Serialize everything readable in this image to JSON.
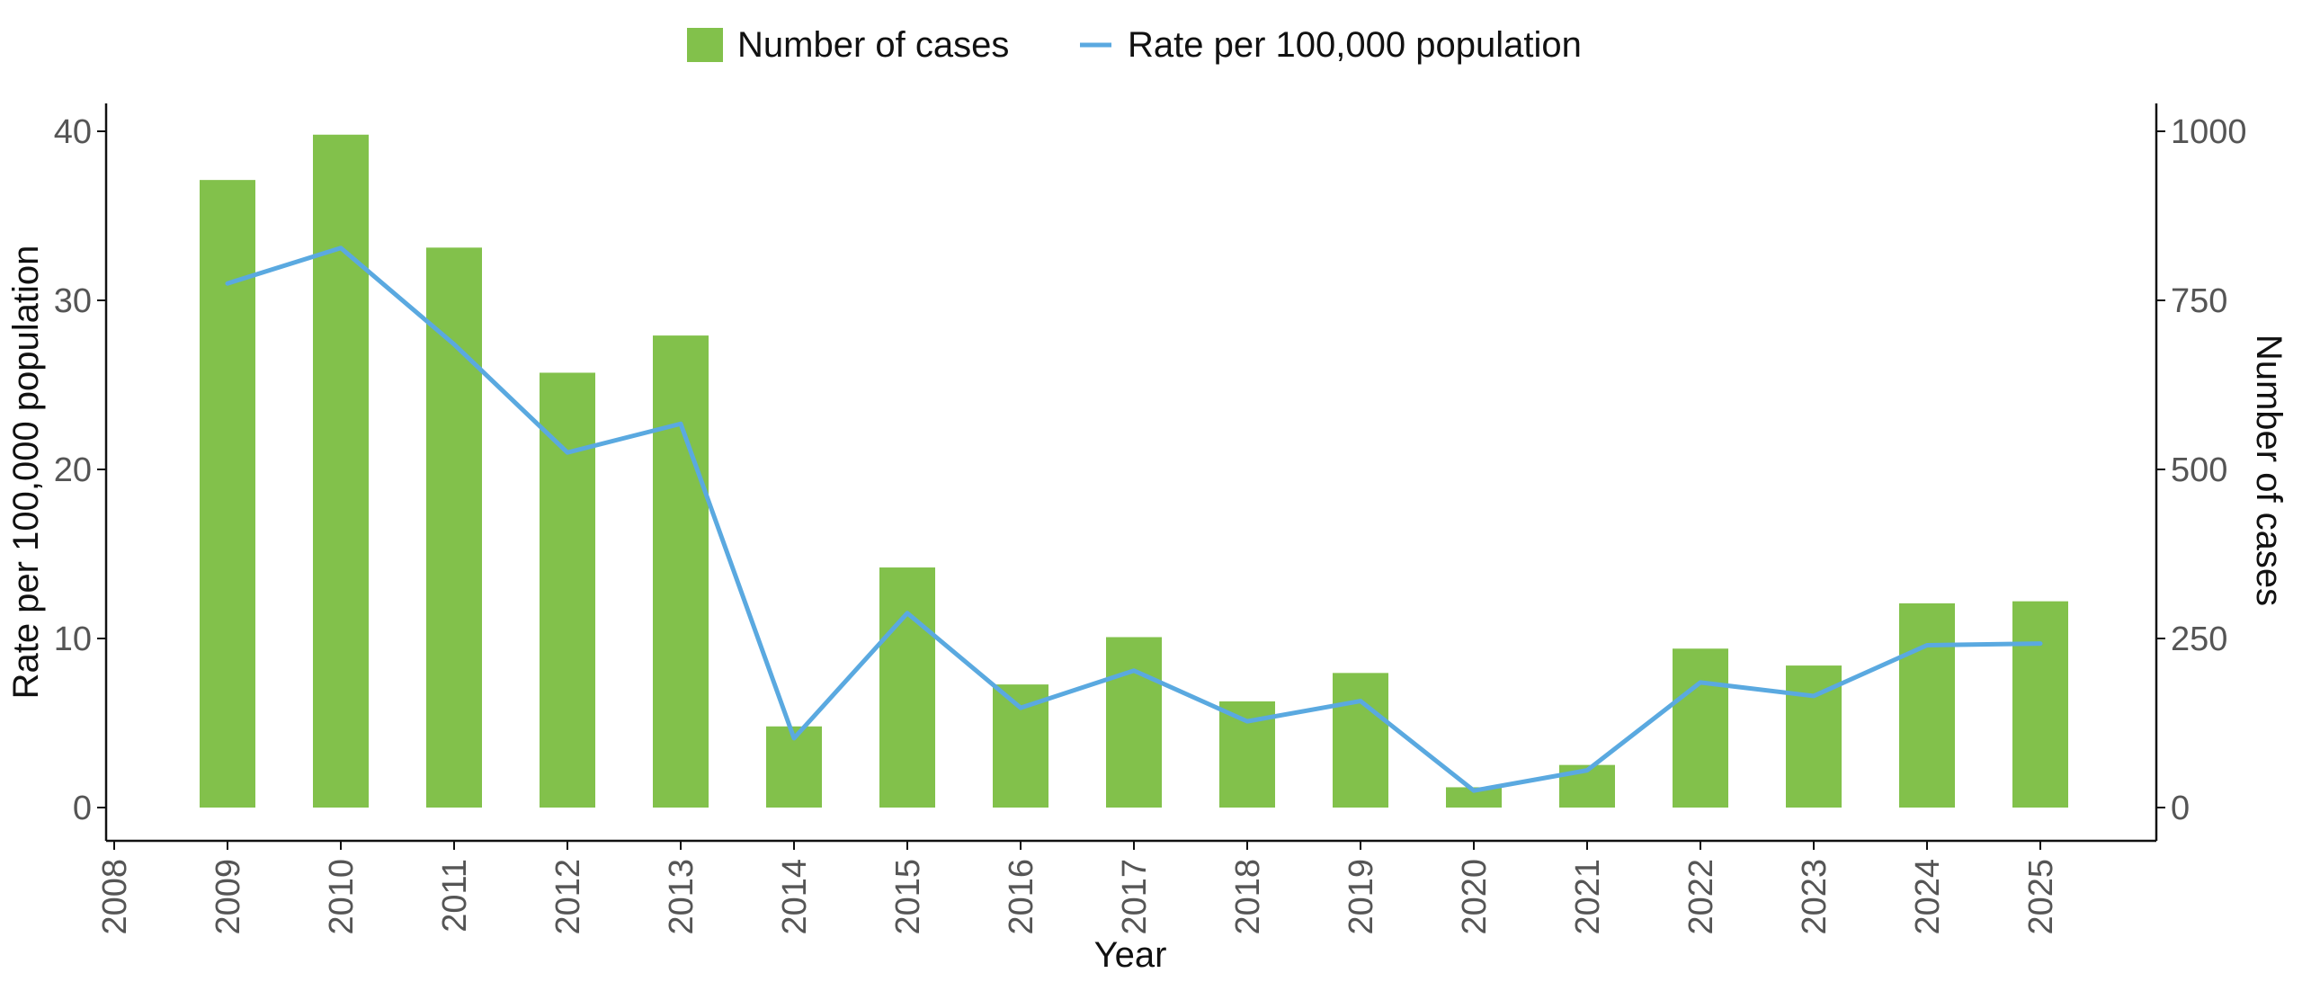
{
  "colors": {
    "bars": "#82c14b",
    "line": "#5aa9e0",
    "axis": "#111111",
    "tick_text": "#555555"
  },
  "chart_data": {
    "type": "bar",
    "title": "",
    "xlabel": "Year",
    "ylabel_left": "Rate per 100,000 population",
    "ylabel_right": "Number of cases",
    "x_ticks": [
      "2008",
      "2009",
      "2010",
      "2011",
      "2012",
      "2013",
      "2014",
      "2015",
      "2016",
      "2017",
      "2018",
      "2019",
      "2020",
      "2021",
      "2022",
      "2023",
      "2024",
      "2025"
    ],
    "categories": [
      "2009",
      "2010",
      "2011",
      "2012",
      "2013",
      "2014",
      "2015",
      "2016",
      "2017",
      "2018",
      "2019",
      "2020",
      "2021",
      "2022",
      "2023",
      "2024",
      "2025"
    ],
    "ylim_left": [
      0,
      40
    ],
    "yticks_left": [
      "0",
      "10",
      "20",
      "30",
      "40"
    ],
    "ylim_right": [
      0,
      1000
    ],
    "yticks_right": [
      "0",
      "250",
      "500",
      "750",
      "1000"
    ],
    "grid": false,
    "legend_position": "top-center",
    "series": [
      {
        "name": "Number of cases",
        "type": "bar",
        "axis": "right",
        "values": [
          928,
          995,
          828,
          643,
          698,
          120,
          355,
          182,
          252,
          157,
          199,
          30,
          63,
          235,
          210,
          302,
          305
        ]
      },
      {
        "name": "Rate per 100,000 population",
        "type": "line",
        "axis": "left",
        "values": [
          31.0,
          33.1,
          27.4,
          21.0,
          22.7,
          4.1,
          11.5,
          5.9,
          8.1,
          5.1,
          6.3,
          1.0,
          2.2,
          7.4,
          6.6,
          9.6,
          9.7
        ]
      }
    ]
  }
}
